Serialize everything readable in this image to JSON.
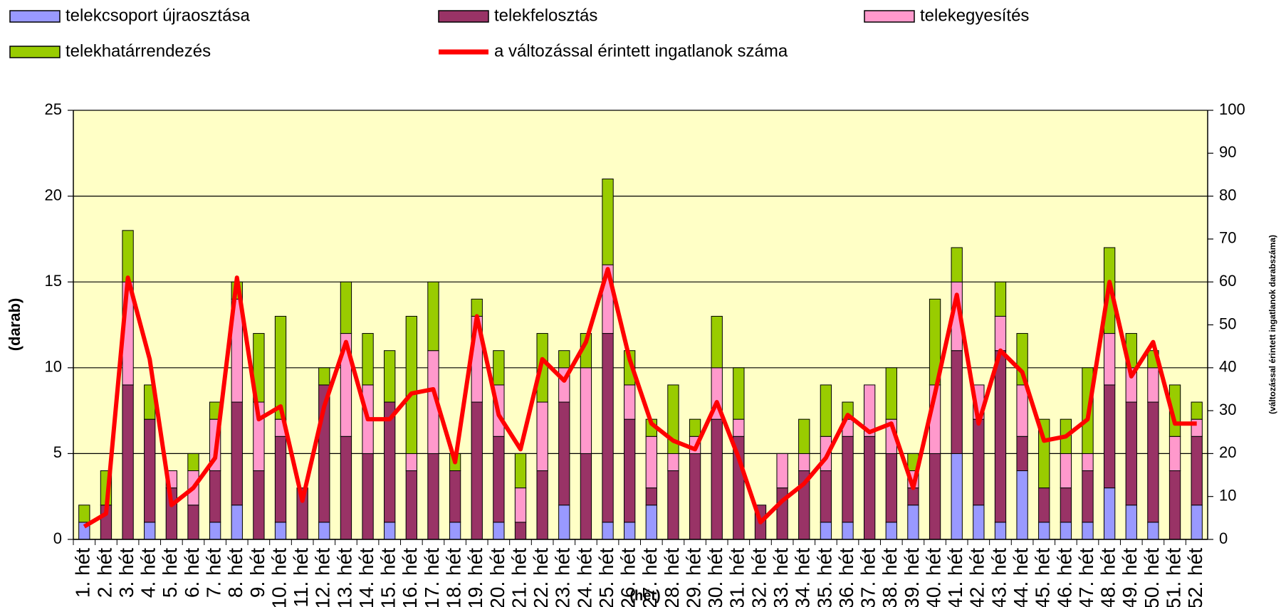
{
  "chart_data": {
    "type": "bar",
    "stacked": true,
    "xlabel": "(hét)",
    "ylabel": "(darab)",
    "y2label": "(változással érintett ingatlanok darabszáma)",
    "categories": [
      "1. hét",
      "2. hét",
      "3. hét",
      "4. hét",
      "5. hét",
      "6. hét",
      "7. hét",
      "8. hét",
      "9. hét",
      "10. hét",
      "11. hét",
      "12. hét",
      "13. hét",
      "14. hét",
      "15. hét",
      "16. hét",
      "17. hét",
      "18. hét",
      "19. hét",
      "20. hét",
      "21. hét",
      "22. hét",
      "23. hét",
      "24. hét",
      "25. hét",
      "26. hét",
      "27. hét",
      "28. hét",
      "29. hét",
      "30. hét",
      "31. hét",
      "32. hét",
      "33. hét",
      "34. hét",
      "35. hét",
      "36. hét",
      "37. hét",
      "38. hét",
      "39. hét",
      "40. hét",
      "41. hét",
      "42. hét",
      "43. hét",
      "44. hét",
      "45. hét",
      "46. hét",
      "47. hét",
      "48. hét",
      "49. hét",
      "50. hét",
      "51. hét",
      "52. hét"
    ],
    "series": [
      {
        "name": "telekcsoport újraosztása",
        "color": "#9999ff",
        "values": [
          1,
          0,
          0,
          1,
          0,
          0,
          1,
          2,
          0,
          1,
          0,
          1,
          0,
          0,
          1,
          0,
          0,
          1,
          0,
          1,
          0,
          0,
          2,
          0,
          1,
          1,
          2,
          0,
          0,
          0,
          0,
          0,
          0,
          0,
          1,
          1,
          0,
          1,
          2,
          0,
          5,
          2,
          1,
          4,
          1,
          1,
          1,
          3,
          2,
          1,
          0,
          2
        ]
      },
      {
        "name": "telekfelosztás",
        "color": "#993366",
        "values": [
          0,
          2,
          9,
          6,
          3,
          2,
          3,
          6,
          4,
          5,
          3,
          8,
          6,
          5,
          7,
          4,
          5,
          3,
          8,
          5,
          1,
          4,
          6,
          5,
          11,
          6,
          1,
          4,
          5,
          7,
          6,
          2,
          3,
          4,
          3,
          5,
          6,
          4,
          1,
          5,
          6,
          5,
          10,
          2,
          2,
          2,
          3,
          6,
          6,
          7,
          4,
          4
        ]
      },
      {
        "name": "telekegyesítés",
        "color": "#ff99cc",
        "values": [
          0,
          0,
          6,
          0,
          1,
          2,
          3,
          6,
          4,
          1,
          0,
          0,
          6,
          4,
          0,
          1,
          6,
          0,
          5,
          3,
          2,
          4,
          2,
          5,
          4,
          2,
          3,
          1,
          1,
          3,
          1,
          0,
          2,
          1,
          2,
          1,
          3,
          2,
          1,
          4,
          4,
          2,
          2,
          3,
          0,
          2,
          1,
          3,
          2,
          2,
          2,
          1
        ]
      },
      {
        "name": "telekhatárrendezés",
        "color": "#99cc00",
        "values": [
          1,
          2,
          3,
          2,
          0,
          1,
          1,
          1,
          4,
          6,
          0,
          1,
          3,
          3,
          3,
          8,
          4,
          1,
          1,
          2,
          2,
          4,
          1,
          2,
          5,
          2,
          1,
          4,
          1,
          3,
          3,
          0,
          0,
          2,
          3,
          1,
          0,
          3,
          1,
          5,
          2,
          0,
          2,
          3,
          4,
          2,
          5,
          5,
          2,
          1,
          3,
          1
        ]
      },
      {
        "name": "a változással érintett ingatlanok száma",
        "type": "line",
        "axis": "y2",
        "color": "#ff0000",
        "values": [
          3,
          6,
          61,
          42,
          8,
          12,
          19,
          61,
          28,
          31,
          9,
          31,
          46,
          28,
          28,
          34,
          35,
          18,
          52,
          29,
          21,
          42,
          37,
          46,
          63,
          42,
          27,
          23,
          21,
          32,
          19,
          4,
          9,
          13,
          19,
          29,
          25,
          27,
          12,
          34,
          57,
          27,
          44,
          39,
          23,
          24,
          28,
          60,
          38,
          46,
          27,
          27
        ]
      }
    ],
    "ylim": [
      0,
      25
    ],
    "yticks": [
      0,
      5,
      10,
      15,
      20,
      25
    ],
    "y2lim": [
      0,
      100
    ],
    "y2ticks": [
      0,
      10,
      20,
      30,
      40,
      50,
      60,
      70,
      80,
      90,
      100
    ],
    "grid": true,
    "legend": "top"
  }
}
